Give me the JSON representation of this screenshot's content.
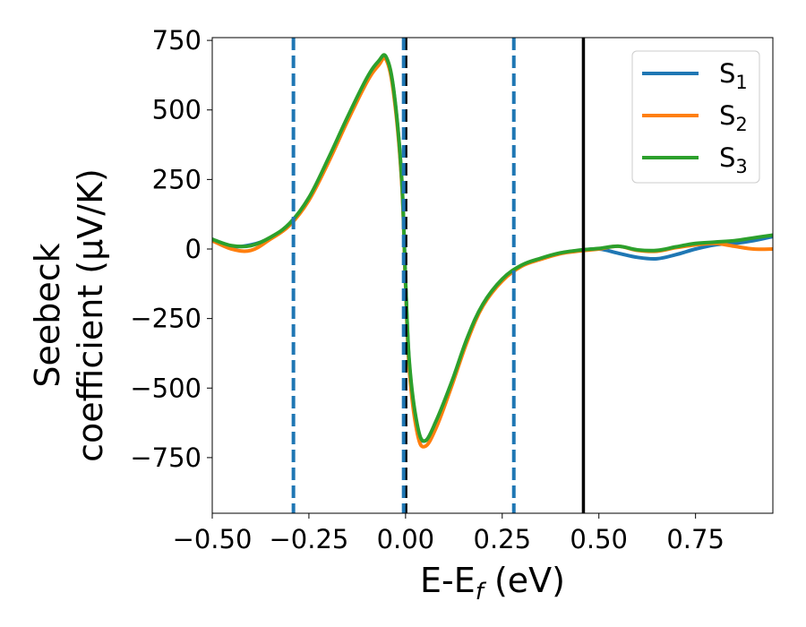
{
  "chart_data": {
    "type": "line",
    "xlabel": "E-E",
    "xlabel_sub": "f",
    "xlabel_unit": " (eV)",
    "ylabel_line1": "Seebeck",
    "ylabel_line2": "coefficient  (μV/K)",
    "xlim": [
      -0.5,
      0.95
    ],
    "ylim": [
      -950,
      760
    ],
    "x_ticks": [
      -0.5,
      -0.25,
      0.0,
      0.25,
      0.5,
      0.75
    ],
    "x_tick_labels": [
      "−0.50",
      "−0.25",
      "0.00",
      "0.25",
      "0.50",
      "0.75"
    ],
    "y_ticks": [
      750,
      500,
      250,
      0,
      -250,
      -500,
      -750
    ],
    "y_tick_labels": [
      "750",
      "500",
      "250",
      "0",
      "−250",
      "−500",
      "−750"
    ],
    "grid": false,
    "legend_position": "top-right",
    "vertical_lines": [
      {
        "x": -0.29,
        "style": "dashed",
        "color": "#1f77b4"
      },
      {
        "x": 0.0,
        "style": "dashed",
        "color": "#000000"
      },
      {
        "x": -0.005,
        "style": "dashed",
        "color": "#1f77b4"
      },
      {
        "x": 0.28,
        "style": "dashed",
        "color": "#1f77b4"
      },
      {
        "x": 0.46,
        "style": "solid",
        "color": "#000000"
      }
    ],
    "series": [
      {
        "name": "S",
        "sub": "1",
        "color": "#1f77b4",
        "x": [
          -0.5,
          -0.45,
          -0.4,
          -0.35,
          -0.3,
          -0.25,
          -0.2,
          -0.15,
          -0.1,
          -0.07,
          -0.05,
          -0.03,
          -0.01,
          0.0,
          0.01,
          0.03,
          0.05,
          0.08,
          0.12,
          0.16,
          0.2,
          0.25,
          0.3,
          0.35,
          0.4,
          0.45,
          0.5,
          0.55,
          0.6,
          0.65,
          0.7,
          0.75,
          0.8,
          0.85,
          0.9,
          0.95
        ],
        "y": [
          35,
          10,
          15,
          40,
          90,
          180,
          320,
          470,
          610,
          670,
          685,
          560,
          250,
          -120,
          -420,
          -640,
          -690,
          -620,
          -480,
          -320,
          -200,
          -110,
          -60,
          -35,
          -15,
          -5,
          0,
          -15,
          -30,
          -35,
          -20,
          0,
          15,
          20,
          30,
          45
        ]
      },
      {
        "name": "S",
        "sub": "2",
        "color": "#ff7f0e",
        "x": [
          -0.5,
          -0.45,
          -0.4,
          -0.35,
          -0.3,
          -0.25,
          -0.2,
          -0.15,
          -0.1,
          -0.07,
          -0.05,
          -0.03,
          -0.01,
          0.0,
          0.01,
          0.03,
          0.05,
          0.08,
          0.12,
          0.16,
          0.2,
          0.25,
          0.3,
          0.35,
          0.4,
          0.45,
          0.5,
          0.55,
          0.6,
          0.65,
          0.7,
          0.75,
          0.8,
          0.85,
          0.9,
          0.95
        ],
        "y": [
          30,
          0,
          -5,
          35,
          85,
          175,
          310,
          460,
          600,
          660,
          680,
          550,
          240,
          -130,
          -440,
          -660,
          -710,
          -640,
          -490,
          -330,
          -205,
          -115,
          -62,
          -37,
          -17,
          -7,
          0,
          10,
          -5,
          -8,
          5,
          15,
          20,
          10,
          0,
          0
        ]
      },
      {
        "name": "S",
        "sub": "3",
        "color": "#2ca02c",
        "x": [
          -0.5,
          -0.45,
          -0.4,
          -0.35,
          -0.3,
          -0.25,
          -0.2,
          -0.15,
          -0.1,
          -0.07,
          -0.05,
          -0.03,
          -0.01,
          0.0,
          0.01,
          0.03,
          0.05,
          0.08,
          0.12,
          0.16,
          0.2,
          0.25,
          0.3,
          0.35,
          0.4,
          0.45,
          0.5,
          0.55,
          0.6,
          0.65,
          0.7,
          0.75,
          0.8,
          0.85,
          0.9,
          0.95
        ],
        "y": [
          35,
          12,
          12,
          42,
          92,
          185,
          325,
          475,
          615,
          675,
          690,
          565,
          255,
          -115,
          -410,
          -630,
          -690,
          -615,
          -475,
          -318,
          -198,
          -108,
          -58,
          -33,
          -14,
          -4,
          2,
          10,
          -3,
          -5,
          8,
          20,
          25,
          30,
          40,
          50
        ]
      }
    ]
  }
}
